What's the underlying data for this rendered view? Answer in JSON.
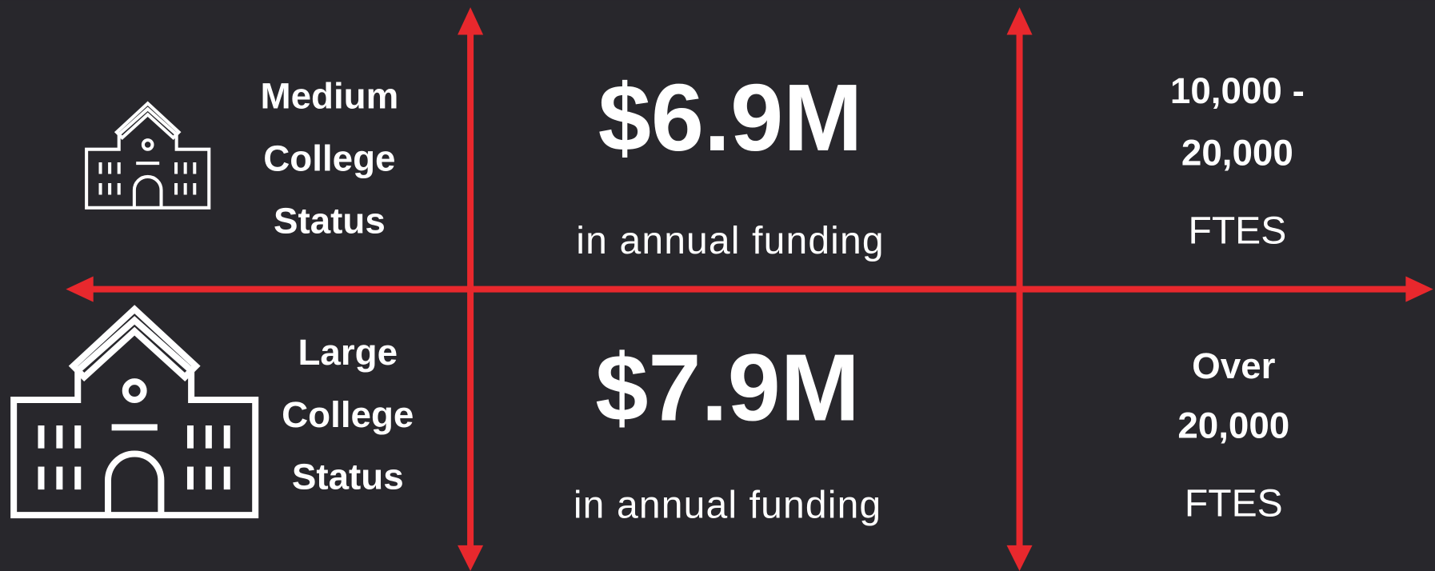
{
  "rows": [
    {
      "status": [
        "Medium",
        "College",
        "Status"
      ],
      "amount": "$6.9M",
      "funding": "in annual funding",
      "ftes": [
        "10,000 -",
        "20,000"
      ],
      "ftes_label": "FTES"
    },
    {
      "status": [
        "Large",
        "College",
        "Status"
      ],
      "amount": "$7.9M",
      "funding": "in annual funding",
      "ftes": [
        "Over",
        "20,000"
      ],
      "ftes_label": "FTES"
    }
  ]
}
